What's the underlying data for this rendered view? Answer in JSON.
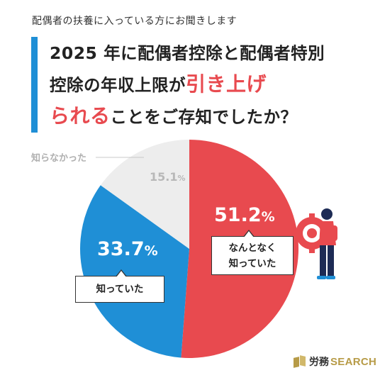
{
  "header": {
    "subtitle": "配偶者の扶養に入っている方にお聞きします",
    "question_line1": "2025 年に配偶者控除と配偶者特別",
    "question_line2_pre": "控除の年収上限が",
    "question_line2_highlight": "引き上げ",
    "question_line3_highlight": "られる",
    "question_line3_post": "ことをご存知でしたか？"
  },
  "colors": {
    "accent_blue": "#1f8fd6",
    "slice_red": "#e84a4f",
    "slice_blue": "#1f8fd6",
    "slice_gray": "#ededed",
    "highlight_red": "#e84a4f",
    "brand_gold": "#b79b47"
  },
  "chart_data": {
    "type": "pie",
    "title": "",
    "slices": [
      {
        "label": "なんとなく知っていた",
        "label_line1": "なんとなく",
        "label_line2": "知っていた",
        "value": 51.2,
        "value_text": "51.2",
        "color": "#e84a4f"
      },
      {
        "label": "知っていた",
        "value": 33.7,
        "value_text": "33.7",
        "color": "#1f8fd6"
      },
      {
        "label": "知らなかった",
        "value": 15.1,
        "value_text": "15.1",
        "color": "#ededed"
      }
    ],
    "unit": "%",
    "start_angle_deg": 0,
    "direction": "clockwise"
  },
  "illustration": {
    "icon": "person-with-gear-icon"
  },
  "brand": {
    "icon": "book-logo-icon",
    "name_kanji": "労務",
    "name_latin": "SEARCH"
  }
}
